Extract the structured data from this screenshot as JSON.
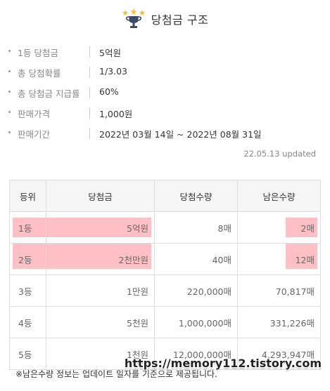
{
  "header": {
    "title": "당첨금 구조"
  },
  "info": [
    {
      "label": "1등 당첨금",
      "value": "5억원"
    },
    {
      "label": "총 당첨확률",
      "value": "1/3.03"
    },
    {
      "label": "총 당첨금 지급률",
      "value": "60%"
    },
    {
      "label": "판매가격",
      "value": "1,000원"
    },
    {
      "label": "판매기간",
      "value": "2022년 03월 14일 ~ 2022년 08월 31일"
    }
  ],
  "updated": "22.05.13 updated",
  "table": {
    "headers": [
      "등위",
      "당첨금",
      "당첨수량",
      "남은수량"
    ],
    "rows": [
      {
        "rank": "1등",
        "prize": "5억원",
        "count": "8매",
        "remaining": "2매"
      },
      {
        "rank": "2등",
        "prize": "2천만원",
        "count": "40매",
        "remaining": "12매"
      },
      {
        "rank": "3등",
        "prize": "1만원",
        "count": "220,000매",
        "remaining": "70,817매"
      },
      {
        "rank": "4등",
        "prize": "5천원",
        "count": "1,000,000매",
        "remaining": "331,226매"
      },
      {
        "rank": "5등",
        "prize": "1천원",
        "count": "12,000,000매",
        "remaining": "4,293,947매"
      }
    ]
  },
  "note": "※남은수량 정보는 업데이트 일자를 기준으로 제공됩니다.",
  "watermark": "https://memory112.tistory.com",
  "colors": {
    "highlight": "#ffc0c5",
    "header_bg": "#f5f5f5",
    "trophy_gold": "#f2c230",
    "trophy_dark": "#3b4a6b"
  }
}
